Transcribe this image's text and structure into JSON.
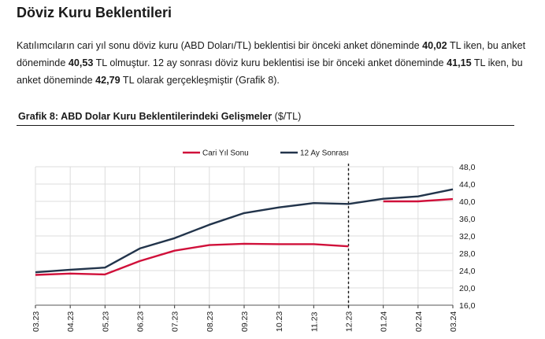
{
  "page": {
    "title": "Döviz Kuru Beklentileri",
    "paragraph": {
      "p1": "Katılımcıların cari yıl sonu döviz kuru (ABD Doları/TL) beklentisi bir önceki anket döneminde ",
      "v1": "40,02",
      "p2": " TL iken, bu anket döneminde ",
      "v2": "40,53",
      "p3": " TL olmuştur. 12 ay sonrası döviz kuru beklentisi ise bir önceki anket döneminde ",
      "v3": "41,15",
      "p4": " TL iken, bu anket döneminde ",
      "v4": "42,79",
      "p5": " TL olarak gerçekleşmiştir (Grafik 8)."
    },
    "figure": {
      "title_main": "Grafik 8: ABD Dolar Kuru Beklentilerindeki Gelişmeler",
      "title_unit": " ($/TL)"
    }
  },
  "chart_data": {
    "type": "line",
    "categories": [
      "03.23",
      "04.23",
      "05.23",
      "06.23",
      "07.23",
      "08.23",
      "09.23",
      "10.23",
      "11.23",
      "12.23",
      "01.24",
      "02.24",
      "03.24"
    ],
    "series": [
      {
        "name": "Cari Yıl Sonu",
        "color": "#d0103a",
        "values": [
          23.0,
          23.3,
          23.1,
          26.2,
          28.6,
          29.9,
          30.2,
          30.1,
          30.1,
          29.6,
          null,
          null,
          null
        ]
      },
      {
        "name": "Cari Yıl Sonu",
        "color": "#d0103a",
        "values": [
          null,
          null,
          null,
          null,
          null,
          null,
          null,
          null,
          null,
          null,
          40.0,
          40.0,
          40.53
        ]
      },
      {
        "name": "12 Ay Sonrası",
        "color": "#22344b",
        "values": [
          23.6,
          24.2,
          24.7,
          29.1,
          31.5,
          34.6,
          37.3,
          38.6,
          39.6,
          39.4,
          40.6,
          41.15,
          42.79
        ]
      }
    ],
    "legend": [
      "Cari Yıl Sonu",
      "12 Ay Sonrası"
    ],
    "legend_position": "top-center",
    "ylim": [
      16,
      48
    ],
    "yticks": [
      "16,0",
      "20,0",
      "24,0",
      "28,0",
      "32,0",
      "36,0",
      "40,0",
      "44,0",
      "48,0"
    ],
    "y_axis_side": "right",
    "grid": true,
    "marker_line_between": [
      "12.23",
      "01.24"
    ],
    "marker_line_style": "dashed",
    "xlabel": "",
    "ylabel": ""
  }
}
